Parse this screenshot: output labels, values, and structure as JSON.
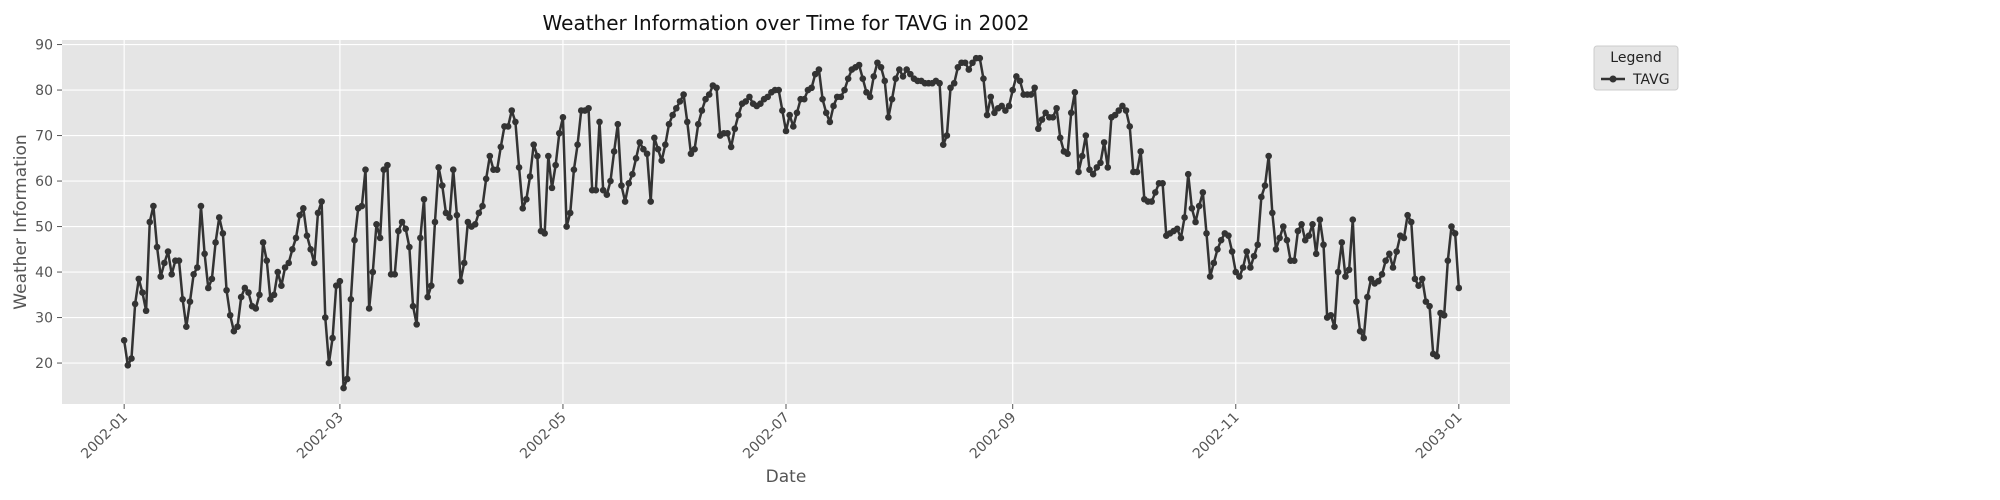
{
  "chart_data": {
    "type": "line",
    "title": "Weather Information over Time for TAVG in 2002",
    "xlabel": "Date",
    "ylabel": "Weather Information",
    "xlim": [
      "2001-12-15",
      "2003-01-15"
    ],
    "ylim": [
      11,
      91
    ],
    "grid": true,
    "legend": {
      "title": "Legend",
      "placement": "outside-top-right"
    },
    "x_ticks": [
      "2002-01",
      "2002-03",
      "2002-05",
      "2002-07",
      "2002-09",
      "2002-11",
      "2003-01"
    ],
    "y_ticks": [
      20,
      30,
      40,
      50,
      60,
      70,
      80,
      90
    ],
    "x_start": "2002-01-01",
    "x_step_days": 1,
    "series": [
      {
        "name": "TAVG",
        "color": "#333333",
        "marker": "circle",
        "values": [
          25,
          19.5,
          21,
          33,
          38.5,
          35.5,
          31.5,
          51,
          54.5,
          45.5,
          39,
          42,
          44.5,
          39.5,
          42.5,
          42.5,
          34,
          28,
          33.5,
          39.5,
          41,
          54.5,
          44,
          36.5,
          38.5,
          46.5,
          52,
          48.5,
          36,
          30.5,
          27,
          28,
          34.5,
          36.5,
          35.5,
          32.5,
          32,
          35,
          46.5,
          42.5,
          34,
          35,
          40,
          37,
          41,
          42,
          45,
          47.5,
          52.5,
          54,
          48,
          45,
          42,
          53,
          55.5,
          30,
          20,
          25.5,
          37,
          38,
          14.5,
          16.5,
          34,
          47,
          54,
          54.5,
          62.5,
          32,
          40,
          50.5,
          47.5,
          62.5,
          63.5,
          39.5,
          39.5,
          49,
          51,
          49.5,
          45.5,
          32.5,
          28.5,
          47.5,
          56,
          34.5,
          37,
          51,
          63,
          59,
          53,
          52,
          62.5,
          52.5,
          38,
          42,
          51,
          50,
          50.5,
          53,
          54.5,
          60.5,
          65.5,
          62.5,
          62.5,
          67.5,
          72,
          72,
          75.5,
          73,
          63,
          54,
          56,
          61,
          68,
          65.5,
          49,
          48.5,
          65.5,
          58.5,
          63.5,
          70.5,
          74,
          50,
          53,
          62.5,
          68,
          75.5,
          75.5,
          76,
          58,
          58,
          73,
          58,
          57,
          60,
          66.5,
          72.5,
          59,
          55.5,
          59.5,
          61.5,
          65,
          68.5,
          67,
          66,
          55.5,
          69.5,
          67,
          64.5,
          68,
          72.5,
          74.5,
          76,
          77.5,
          79,
          73,
          66,
          67,
          72.5,
          75.5,
          78,
          79,
          81,
          80.5,
          70,
          70.5,
          70.5,
          67.5,
          71.5,
          74.5,
          77,
          77.5,
          78.5,
          77,
          76.5,
          77,
          78,
          78.5,
          79.5,
          80,
          80,
          75.5,
          71,
          74.5,
          72,
          75,
          78,
          78,
          80,
          80.5,
          83.5,
          84.5,
          78,
          75,
          73,
          76.5,
          78.5,
          78.5,
          80,
          82.5,
          84.5,
          85,
          85.5,
          82.5,
          79.5,
          78.5,
          83,
          86,
          85,
          82,
          74,
          78,
          82.5,
          84.5,
          83,
          84.5,
          83.5,
          82.5,
          82,
          82,
          81.5,
          81.5,
          81.5,
          82,
          81.5,
          68,
          70,
          80.5,
          81.5,
          85,
          86,
          86,
          84.5,
          86,
          87,
          87,
          82.5,
          74.5,
          78.5,
          75,
          76,
          76.5,
          75.5,
          76.5,
          80,
          83,
          82,
          79,
          79,
          79,
          80.5,
          71.5,
          73.5,
          75,
          74,
          74,
          76,
          69.5,
          66.5,
          66,
          75,
          79.5,
          62,
          65.5,
          70,
          62.5,
          61.5,
          63,
          64,
          68.5,
          63,
          74,
          74.5,
          75.5,
          76.5,
          75.5,
          72,
          62,
          62,
          66.5,
          56,
          55.5,
          55.5,
          57.5,
          59.5,
          59.5,
          48,
          48.5,
          49,
          49.5,
          47.5,
          52,
          61.5,
          54,
          51,
          54.5,
          57.5,
          48.5,
          39,
          42,
          45,
          47,
          48.5,
          48,
          44.5,
          40,
          39,
          41,
          44.5,
          41,
          43.5,
          46,
          56.5,
          59,
          65.5,
          53,
          45,
          47.5,
          50,
          47,
          42.5,
          42.5,
          49,
          50.5,
          47,
          48,
          50.5,
          44,
          51.5,
          46,
          30,
          30.5,
          28,
          40,
          46.5,
          39,
          40.5,
          51.5,
          33.5,
          27,
          25.5,
          34.5,
          38.5,
          37.5,
          38,
          39.5,
          42.5,
          44,
          41,
          44.5,
          48,
          47.5,
          52.5,
          51,
          38.5,
          37,
          38.5,
          33.5,
          32.5,
          22,
          21.5,
          31,
          30.5,
          42.5,
          50,
          48.5,
          36.5
        ]
      }
    ]
  }
}
